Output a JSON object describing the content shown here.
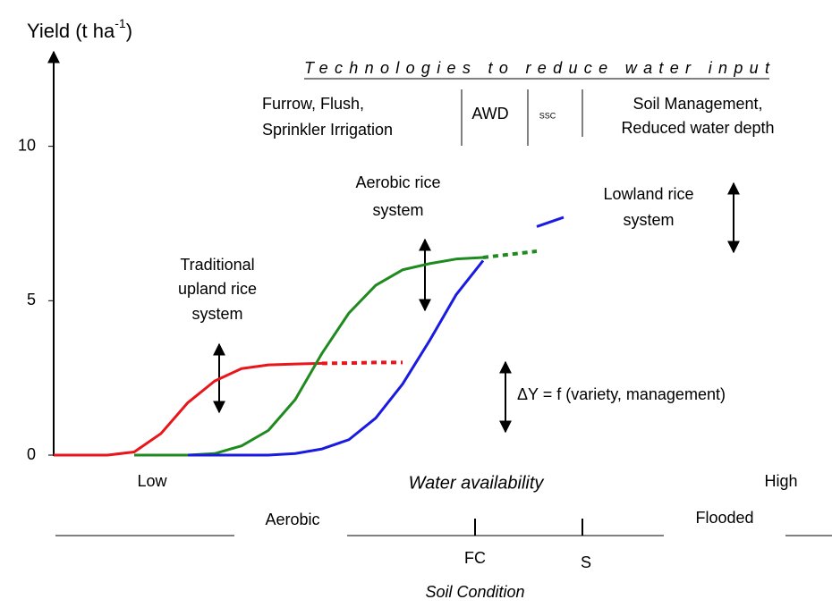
{
  "chart_data": {
    "type": "line",
    "y_label": {
      "text": "Yield (t ha",
      "sup": "-1",
      "end": ")"
    },
    "ylim": [
      0,
      13
    ],
    "yticks": [
      0,
      5,
      10
    ],
    "categories": [
      null,
      null,
      null,
      null,
      null,
      null,
      null,
      null,
      null,
      null,
      null,
      null,
      null,
      null,
      null,
      null,
      null,
      null,
      null,
      null
    ],
    "series": [
      {
        "color": "#e8161a",
        "line_style": "solid",
        "values": [
          0,
          0,
          0,
          0.1,
          0.7,
          1.7,
          2.4,
          2.8,
          2.92,
          2.95,
          2.97,
          null,
          null,
          null,
          null,
          null,
          null,
          null,
          null,
          null
        ]
      },
      {
        "color": "#e8161a",
        "line_style": "dotted",
        "values": [
          null,
          null,
          null,
          null,
          null,
          null,
          null,
          null,
          null,
          null,
          2.97,
          2.98,
          3.0,
          3.0,
          null,
          null,
          null,
          null,
          null,
          null
        ]
      },
      {
        "color": "#1f8a1f",
        "line_style": "solid",
        "values": [
          null,
          null,
          null,
          0,
          0,
          0,
          0.05,
          0.3,
          0.8,
          1.8,
          3.3,
          4.6,
          5.5,
          6.0,
          6.2,
          6.35,
          6.4,
          null,
          null,
          null
        ]
      },
      {
        "color": "#1f8a1f",
        "line_style": "dotted",
        "values": [
          null,
          null,
          null,
          null,
          null,
          null,
          null,
          null,
          null,
          null,
          null,
          null,
          null,
          null,
          null,
          null,
          6.4,
          6.5,
          6.6,
          null
        ]
      },
      {
        "color": "#1a1ae0",
        "line_style": "solid",
        "values": [
          null,
          null,
          null,
          null,
          null,
          0,
          0,
          0,
          0,
          0.05,
          0.2,
          0.5,
          1.2,
          2.3,
          3.7,
          5.2,
          6.3,
          null,
          7.4,
          7.7
        ]
      }
    ],
    "annotations": {
      "upland": [
        "Traditional",
        "upland rice",
        "system"
      ],
      "aerobic": [
        "Aerobic rice",
        "system"
      ],
      "lowland": [
        "Lowland rice",
        "system"
      ],
      "delta": "ΔY = f (variety, management)"
    },
    "technologies": {
      "heading": "Technologies to reduce water input",
      "furrow": [
        "Furrow, Flush,",
        "Sprinkler  Irrigation"
      ],
      "awd": "AWD",
      "ssc": "SSC",
      "soil": [
        "Soil Management,",
        "Reduced water depth"
      ]
    },
    "x_labels": {
      "low": "Low",
      "middle": "Water availability",
      "high": "High"
    },
    "soil_condition": {
      "aerobic": "Aerobic",
      "flooded": "Flooded",
      "fc": "FC",
      "s": "S",
      "title": "Soil Condition"
    }
  }
}
